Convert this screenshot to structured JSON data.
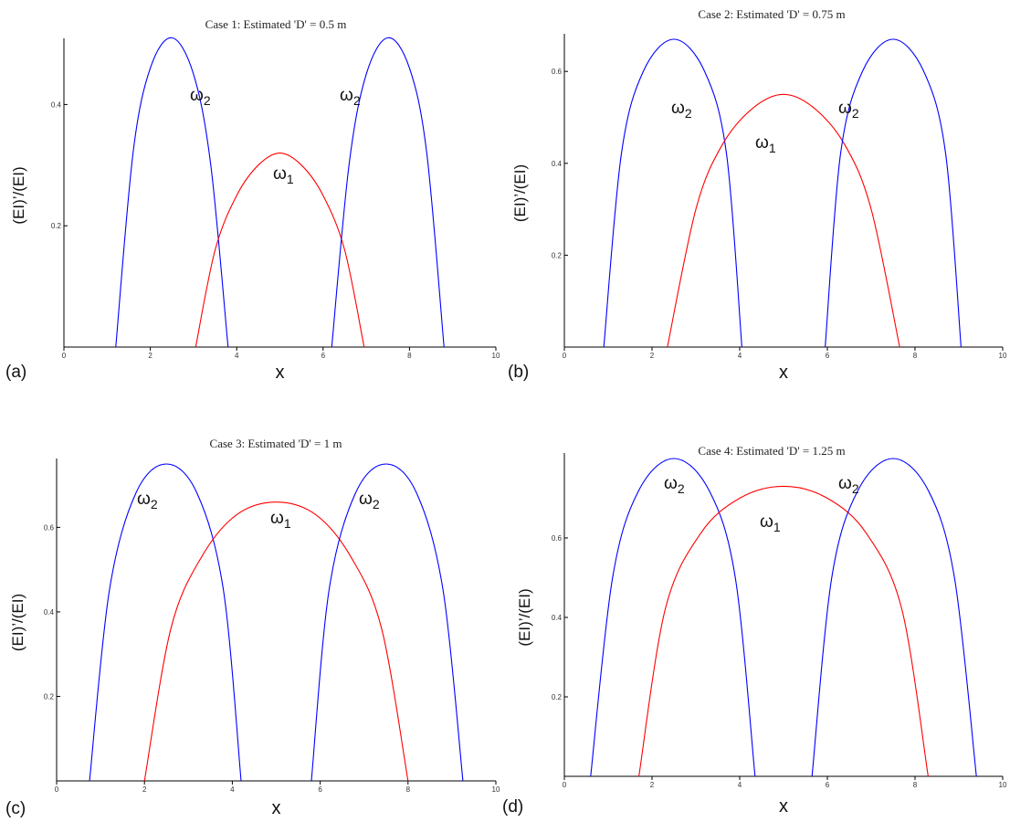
{
  "colors": {
    "omega1": "#ff0000",
    "omega2": "#0000ff",
    "axis": "#000000"
  },
  "chart_data": [
    {
      "type": "line",
      "panel_label": "(a)",
      "title": "Case 1: Estimated 'D' = 0.5 m",
      "xlabel": "x",
      "ylabel": "(EI)’/(EI)",
      "xlim": [
        0,
        10
      ],
      "ylim": [
        0,
        0.5
      ],
      "xticks": [
        0,
        2,
        4,
        6,
        8,
        10
      ],
      "yticks": [
        0.2,
        0.4
      ],
      "xtick_labels": [
        "0",
        "2",
        "4",
        "6",
        "8",
        "10"
      ],
      "ytick_labels": [
        "0.2",
        "0.4"
      ],
      "series": [
        {
          "label": "ω",
          "sub": "2",
          "color": "#0000ff",
          "x": [
            1.2,
            1.6,
            2.0,
            2.5,
            3.0,
            3.4,
            3.8
          ],
          "y": [
            0,
            0.32,
            0.46,
            0.51,
            0.45,
            0.3,
            0
          ]
        },
        {
          "label": "ω",
          "sub": "1",
          "color": "#ff0000",
          "x": [
            3.05,
            3.5,
            4.0,
            4.5,
            5.0,
            5.5,
            6.0,
            6.5,
            6.95
          ],
          "y": [
            0,
            0.16,
            0.25,
            0.3,
            0.32,
            0.3,
            0.25,
            0.16,
            0
          ]
        },
        {
          "label": "ω",
          "sub": "2",
          "color": "#0000ff",
          "x": [
            6.2,
            6.6,
            7.0,
            7.5,
            8.0,
            8.4,
            8.8
          ],
          "y": [
            0,
            0.3,
            0.45,
            0.51,
            0.46,
            0.32,
            0
          ]
        }
      ]
    },
    {
      "type": "line",
      "panel_label": "(b)",
      "title": "Case 2: Estimated 'D' = 0.75 m",
      "xlabel": "x",
      "ylabel": "(EI)’/(EI)",
      "xlim": [
        0,
        10
      ],
      "ylim": [
        0,
        0.67
      ],
      "xticks": [
        0,
        2,
        4,
        6,
        8,
        10
      ],
      "yticks": [
        0.2,
        0.4,
        0.6
      ],
      "xtick_labels": [
        "0",
        "2",
        "4",
        "6",
        "8",
        "10"
      ],
      "ytick_labels": [
        "0.2",
        "0.4",
        "0.6"
      ],
      "series": [
        {
          "label": "ω",
          "sub": "2",
          "color": "#0000ff",
          "x": [
            0.9,
            1.3,
            1.8,
            2.5,
            3.2,
            3.7,
            4.05
          ],
          "y": [
            0,
            0.42,
            0.6,
            0.67,
            0.6,
            0.42,
            0
          ]
        },
        {
          "label": "ω",
          "sub": "1",
          "color": "#ff0000",
          "x": [
            2.35,
            3.0,
            3.6,
            4.3,
            5.0,
            5.7,
            6.4,
            7.0,
            7.65
          ],
          "y": [
            0,
            0.3,
            0.44,
            0.52,
            0.55,
            0.52,
            0.44,
            0.3,
            0
          ]
        },
        {
          "label": "ω",
          "sub": "2",
          "color": "#0000ff",
          "x": [
            5.95,
            6.3,
            6.8,
            7.5,
            8.2,
            8.7,
            9.05
          ],
          "y": [
            0,
            0.42,
            0.6,
            0.67,
            0.6,
            0.42,
            0
          ]
        }
      ]
    },
    {
      "type": "line",
      "panel_label": "(c)",
      "title": "Case 3: Estimated 'D' = 1 m",
      "xlabel": "x",
      "ylabel": "(EI)’/(EI)",
      "xlim": [
        0,
        10
      ],
      "ylim": [
        0,
        0.75
      ],
      "xticks": [
        0,
        2,
        4,
        6,
        8,
        10
      ],
      "yticks": [
        0.2,
        0.4,
        0.6
      ],
      "xtick_labels": [
        "0",
        "2",
        "4",
        "6",
        "8",
        "10"
      ],
      "ytick_labels": [
        "0.2",
        "0.4",
        "0.6"
      ],
      "series": [
        {
          "label": "ω",
          "sub": "2",
          "color": "#0000ff",
          "x": [
            0.75,
            1.2,
            1.8,
            2.5,
            3.2,
            3.8,
            4.2
          ],
          "y": [
            0,
            0.45,
            0.68,
            0.75,
            0.68,
            0.45,
            0
          ]
        },
        {
          "label": "ω",
          "sub": "1",
          "color": "#ff0000",
          "x": [
            2.0,
            2.6,
            3.3,
            4.1,
            5.0,
            5.9,
            6.7,
            7.4,
            8.0
          ],
          "y": [
            0,
            0.36,
            0.53,
            0.63,
            0.66,
            0.63,
            0.53,
            0.36,
            0
          ]
        },
        {
          "label": "ω",
          "sub": "2",
          "color": "#0000ff",
          "x": [
            5.8,
            6.2,
            6.8,
            7.5,
            8.2,
            8.8,
            9.25
          ],
          "y": [
            0,
            0.45,
            0.68,
            0.75,
            0.68,
            0.45,
            0
          ]
        }
      ]
    },
    {
      "type": "line",
      "panel_label": "(d)",
      "title": "Case 4: Estimated 'D' = 1.25 m",
      "xlabel": "x",
      "ylabel": "(EI)’/(EI)",
      "xlim": [
        0,
        10
      ],
      "ylim": [
        0,
        0.8
      ],
      "xticks": [
        0,
        2,
        4,
        6,
        8,
        10
      ],
      "yticks": [
        0.2,
        0.4,
        0.6
      ],
      "xtick_labels": [
        "0",
        "2",
        "4",
        "6",
        "8",
        "10"
      ],
      "ytick_labels": [
        "0.2",
        "0.4",
        "0.6"
      ],
      "series": [
        {
          "label": "ω",
          "sub": "2",
          "color": "#0000ff",
          "x": [
            0.6,
            1.1,
            1.7,
            2.5,
            3.3,
            3.9,
            4.35
          ],
          "y": [
            0,
            0.5,
            0.72,
            0.8,
            0.72,
            0.5,
            0
          ]
        },
        {
          "label": "ω",
          "sub": "1",
          "color": "#ff0000",
          "x": [
            1.7,
            2.3,
            3.1,
            4.0,
            5.0,
            6.0,
            6.9,
            7.7,
            8.3
          ],
          "y": [
            0,
            0.42,
            0.61,
            0.7,
            0.73,
            0.7,
            0.61,
            0.42,
            0
          ]
        },
        {
          "label": "ω",
          "sub": "2",
          "color": "#0000ff",
          "x": [
            5.65,
            6.1,
            6.7,
            7.5,
            8.3,
            8.9,
            9.4
          ],
          "y": [
            0,
            0.5,
            0.72,
            0.8,
            0.72,
            0.5,
            0
          ]
        }
      ]
    }
  ]
}
